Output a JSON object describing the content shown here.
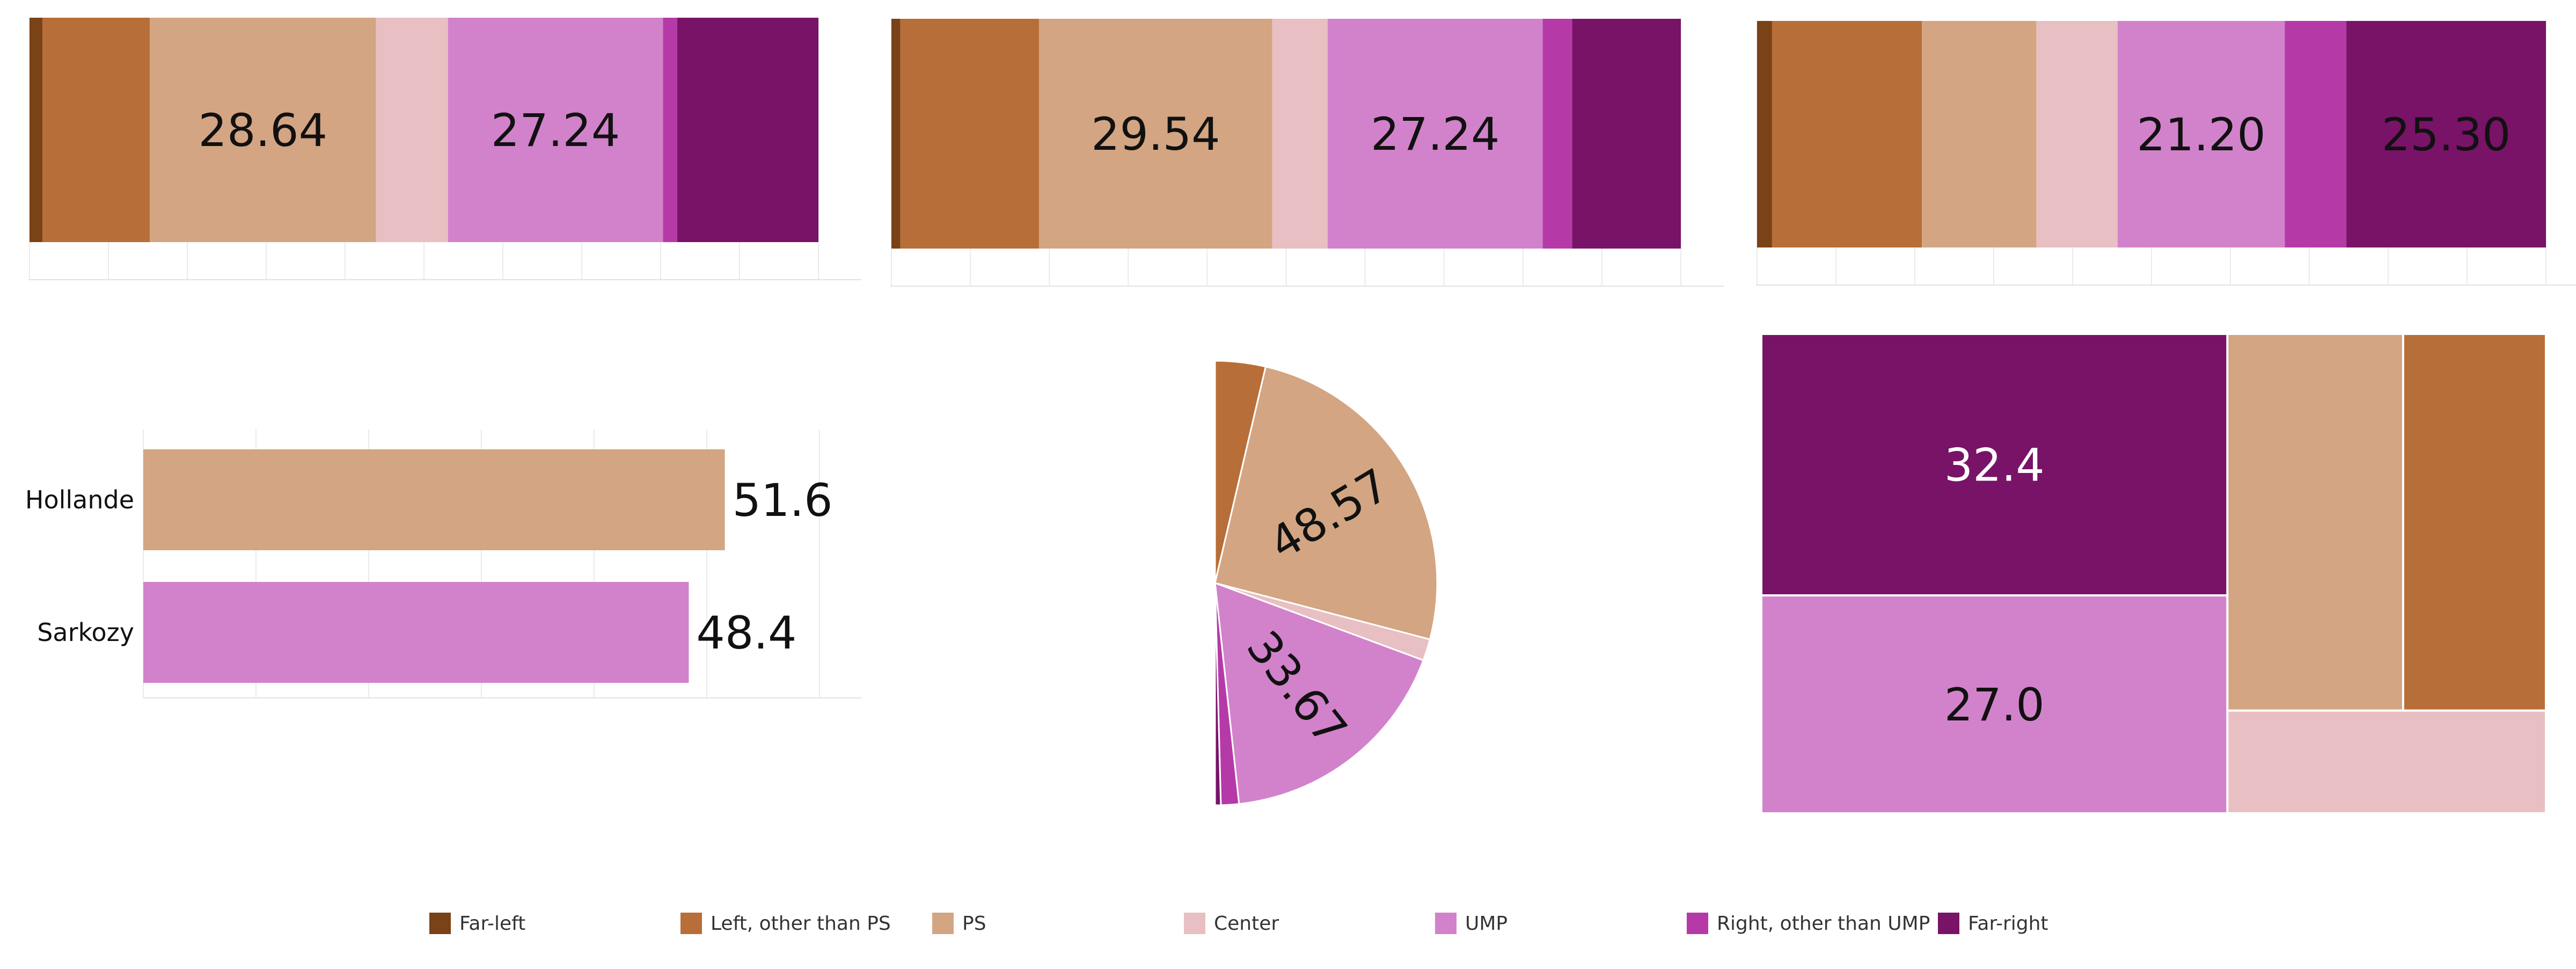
{
  "legend": {
    "items": [
      {
        "name": "Far-left",
        "color": "#7a4217"
      },
      {
        "name": "Left, other than PS",
        "color": "#b76e38"
      },
      {
        "name": "PS",
        "color": "#d3a582"
      },
      {
        "name": "Center",
        "color": "#e8bfc2"
      },
      {
        "name": "UMP",
        "color": "#d282cb"
      },
      {
        "name": "Right, other than UMP",
        "color": "#b53aa8"
      },
      {
        "name": "Far-right",
        "color": "#781368"
      }
    ]
  },
  "chart_data": [
    {
      "type": "bar",
      "stacked": true,
      "orientation": "horizontal",
      "categories": [
        "Far-left",
        "Left, other than PS",
        "PS",
        "Center",
        "UMP",
        "Right, other than UMP",
        "Far-right"
      ],
      "values": [
        1.63,
        13.61,
        28.64,
        9.13,
        27.24,
        1.79,
        17.9
      ],
      "data_labels": [
        "",
        "",
        "28.64",
        "",
        "27.24",
        "",
        ""
      ],
      "xlim": [
        0,
        100
      ]
    },
    {
      "type": "bar",
      "stacked": true,
      "orientation": "horizontal",
      "categories": [
        "Far-left",
        "Left, other than PS",
        "PS",
        "Center",
        "UMP",
        "Right, other than UMP",
        "Far-right"
      ],
      "values": [
        1.13,
        17.57,
        29.54,
        7.02,
        27.24,
        3.72,
        13.78
      ],
      "data_labels": [
        "",
        "",
        "29.54",
        "",
        "27.24",
        "",
        ""
      ],
      "xlim": [
        0,
        100
      ]
    },
    {
      "type": "bar",
      "stacked": true,
      "orientation": "horizontal",
      "categories": [
        "Far-left",
        "Left, other than PS",
        "PS",
        "Center",
        "UMP",
        "Right, other than UMP",
        "Far-right"
      ],
      "values": [
        1.9,
        19.0,
        14.5,
        10.3,
        21.2,
        7.8,
        25.3
      ],
      "data_labels": [
        "",
        "",
        "",
        "",
        "21.20",
        "",
        "25.30"
      ],
      "xlim": [
        0,
        100
      ]
    },
    {
      "type": "bar",
      "orientation": "horizontal",
      "categories": [
        "Hollande",
        "Sarkozy"
      ],
      "values": [
        51.6,
        48.4
      ],
      "colors": [
        "#d3a582",
        "#d282cb"
      ],
      "data_labels": [
        "51.6",
        "48.4"
      ],
      "xlim": [
        0,
        60
      ]
    },
    {
      "type": "pie",
      "half": true,
      "categories": [
        "Left, other than PS",
        "PS",
        "Center",
        "UMP",
        "Right, other than UMP",
        "Far-right"
      ],
      "values": [
        7.0,
        48.57,
        3.0,
        33.67,
        2.5,
        0.8
      ],
      "data_labels": [
        "",
        "48.57",
        "",
        "33.67",
        "",
        ""
      ]
    },
    {
      "type": "treemap",
      "categories": [
        "Far-right",
        "UMP",
        "PS",
        "Left, other than PS",
        "Center"
      ],
      "values": [
        32.4,
        27.0,
        17.6,
        14.3,
        8.7
      ],
      "data_labels": [
        "32.4",
        "27.0",
        "",
        "",
        ""
      ]
    }
  ]
}
